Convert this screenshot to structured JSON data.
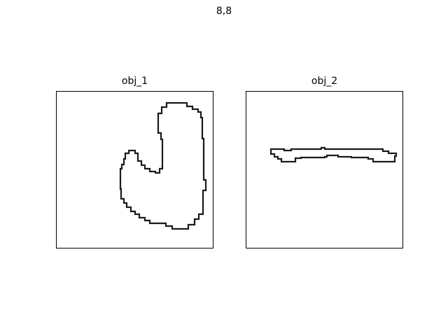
{
  "figure": {
    "suptitle": "8,8"
  },
  "panels": [
    {
      "title": "obj_1",
      "contour_icon": "hook-shaped-contour"
    },
    {
      "title": "obj_2",
      "contour_icon": "elongated-bar-contour"
    }
  ],
  "colors": {
    "contour": "#1a1a1a",
    "frame": "#000000",
    "background": "#ffffff"
  }
}
